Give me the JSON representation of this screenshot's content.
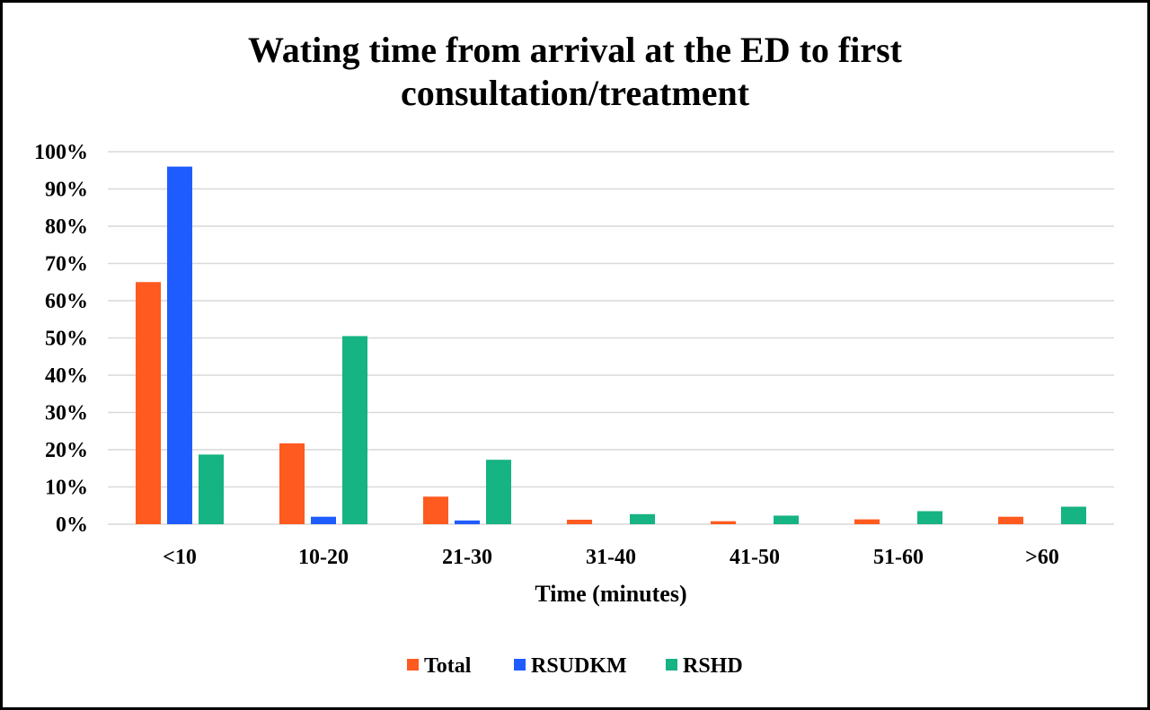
{
  "chart_data": {
    "type": "bar",
    "title_lines": [
      "Wating time from arrival at the ED to first",
      "consultation/treatment"
    ],
    "xlabel": "Time (minutes)",
    "ylabel": "",
    "ylim": [
      0,
      100
    ],
    "yticks": [
      0,
      10,
      20,
      30,
      40,
      50,
      60,
      70,
      80,
      90,
      100
    ],
    "ytick_labels": [
      "0%",
      "10%",
      "20%",
      "30%",
      "40%",
      "50%",
      "60%",
      "70%",
      "80%",
      "90%",
      "100%"
    ],
    "categories": [
      "<10",
      "10-20",
      "21-30",
      "31-40",
      "41-50",
      "51-60",
      ">60"
    ],
    "series": [
      {
        "name": "Total",
        "color": "#ff5a1f",
        "values": [
          65,
          21.7,
          7.4,
          1.2,
          0.8,
          1.3,
          2.0
        ]
      },
      {
        "name": "RSUDKM",
        "color": "#1f5cff",
        "values": [
          96,
          2.0,
          1.0,
          0,
          0,
          0,
          0
        ]
      },
      {
        "name": "RSHD",
        "color": "#16b383",
        "values": [
          18.7,
          50.5,
          17.3,
          2.7,
          2.3,
          3.5,
          4.7
        ]
      }
    ],
    "grid": true,
    "legend_position": "bottom"
  }
}
